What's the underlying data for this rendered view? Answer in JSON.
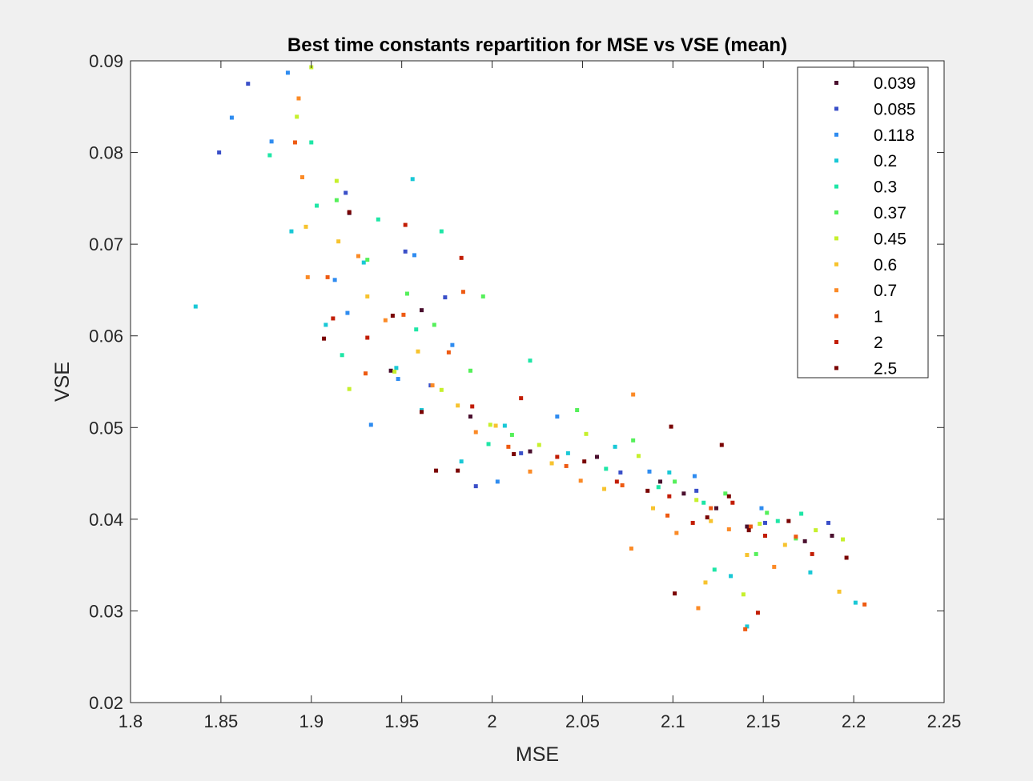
{
  "chart_data": {
    "type": "scatter",
    "title": "Best time constants repartition for MSE vs VSE (mean)",
    "xlabel": "MSE",
    "ylabel": "VSE",
    "xlim": [
      1.8,
      2.25
    ],
    "ylim": [
      0.02,
      0.09
    ],
    "xticks": [
      1.8,
      1.85,
      1.9,
      1.95,
      2.0,
      2.05,
      2.1,
      2.15,
      2.2,
      2.25
    ],
    "xtick_labels": [
      "1.8",
      "1.85",
      "1.9",
      "1.95",
      "2",
      "2.05",
      "2.1",
      "2.15",
      "2.2",
      "2.25"
    ],
    "yticks": [
      0.02,
      0.03,
      0.04,
      0.05,
      0.06,
      0.07,
      0.08,
      0.09
    ],
    "ytick_labels": [
      "0.02",
      "0.03",
      "0.04",
      "0.05",
      "0.06",
      "0.07",
      "0.08",
      "0.09"
    ],
    "grid": false,
    "legend_position": "top-right",
    "series": [
      {
        "name": "0.039",
        "color": "#4a0f2e",
        "points": [
          [
            1.921,
            0.0734
          ],
          [
            1.944,
            0.0562
          ],
          [
            1.961,
            0.0628
          ],
          [
            1.988,
            0.0512
          ],
          [
            2.021,
            0.0474
          ],
          [
            2.058,
            0.0468
          ],
          [
            2.093,
            0.0441
          ],
          [
            2.124,
            0.0412
          ],
          [
            2.141,
            0.0392
          ],
          [
            2.173,
            0.0376
          ],
          [
            2.188,
            0.0382
          ],
          [
            2.106,
            0.0428
          ]
        ]
      },
      {
        "name": "0.085",
        "color": "#3a4fc8",
        "points": [
          [
            1.849,
            0.08
          ],
          [
            1.865,
            0.0875
          ],
          [
            1.919,
            0.0756
          ],
          [
            1.952,
            0.0692
          ],
          [
            1.974,
            0.0642
          ],
          [
            1.991,
            0.0436
          ],
          [
            2.016,
            0.0472
          ],
          [
            2.071,
            0.0451
          ],
          [
            2.113,
            0.0431
          ],
          [
            2.151,
            0.0396
          ],
          [
            2.186,
            0.0396
          ],
          [
            1.966,
            0.0546
          ]
        ]
      },
      {
        "name": "0.118",
        "color": "#2f8cf0",
        "points": [
          [
            1.856,
            0.0838
          ],
          [
            1.878,
            0.0812
          ],
          [
            1.887,
            0.0887
          ],
          [
            1.913,
            0.0661
          ],
          [
            1.92,
            0.0625
          ],
          [
            1.933,
            0.0503
          ],
          [
            1.957,
            0.0688
          ],
          [
            1.978,
            0.059
          ],
          [
            2.003,
            0.0441
          ],
          [
            2.036,
            0.0512
          ],
          [
            2.087,
            0.0452
          ],
          [
            2.112,
            0.0447
          ],
          [
            2.149,
            0.0412
          ],
          [
            1.948,
            0.0553
          ]
        ]
      },
      {
        "name": "0.2",
        "color": "#19c8d6",
        "points": [
          [
            1.836,
            0.0632
          ],
          [
            1.889,
            0.0714
          ],
          [
            1.908,
            0.0612
          ],
          [
            1.929,
            0.068
          ],
          [
            1.947,
            0.0565
          ],
          [
            1.961,
            0.0519
          ],
          [
            1.983,
            0.0463
          ],
          [
            2.007,
            0.0502
          ],
          [
            2.042,
            0.0472
          ],
          [
            2.068,
            0.0479
          ],
          [
            2.098,
            0.0451
          ],
          [
            2.132,
            0.0338
          ],
          [
            2.141,
            0.0283
          ],
          [
            2.176,
            0.0342
          ],
          [
            2.201,
            0.0309
          ],
          [
            1.956,
            0.0771
          ]
        ]
      },
      {
        "name": "0.3",
        "color": "#1ee6a6",
        "points": [
          [
            1.877,
            0.0797
          ],
          [
            1.9,
            0.0811
          ],
          [
            1.903,
            0.0742
          ],
          [
            1.917,
            0.0579
          ],
          [
            1.937,
            0.0727
          ],
          [
            1.958,
            0.0607
          ],
          [
            1.972,
            0.0714
          ],
          [
            1.998,
            0.0482
          ],
          [
            2.021,
            0.0573
          ],
          [
            2.063,
            0.0455
          ],
          [
            2.092,
            0.0435
          ],
          [
            2.117,
            0.0418
          ],
          [
            2.158,
            0.0398
          ],
          [
            2.171,
            0.0406
          ],
          [
            2.123,
            0.0345
          ]
        ]
      },
      {
        "name": "0.37",
        "color": "#55f05a",
        "points": [
          [
            1.914,
            0.0748
          ],
          [
            1.931,
            0.0683
          ],
          [
            1.953,
            0.0646
          ],
          [
            1.968,
            0.0612
          ],
          [
            1.988,
            0.0562
          ],
          [
            1.995,
            0.0643
          ],
          [
            2.011,
            0.0492
          ],
          [
            2.047,
            0.0519
          ],
          [
            2.078,
            0.0486
          ],
          [
            2.101,
            0.0441
          ],
          [
            2.129,
            0.0428
          ],
          [
            2.152,
            0.0407
          ],
          [
            2.168,
            0.0379
          ],
          [
            2.146,
            0.0362
          ]
        ]
      },
      {
        "name": "0.45",
        "color": "#c6f02c",
        "points": [
          [
            1.892,
            0.0839
          ],
          [
            1.9,
            0.0893
          ],
          [
            1.914,
            0.0769
          ],
          [
            1.921,
            0.0542
          ],
          [
            1.946,
            0.0561
          ],
          [
            1.972,
            0.0541
          ],
          [
            1.999,
            0.0503
          ],
          [
            2.026,
            0.0481
          ],
          [
            2.052,
            0.0493
          ],
          [
            2.081,
            0.0469
          ],
          [
            2.113,
            0.0421
          ],
          [
            2.148,
            0.0395
          ],
          [
            2.179,
            0.0388
          ],
          [
            2.194,
            0.0378
          ],
          [
            2.139,
            0.0318
          ]
        ]
      },
      {
        "name": "0.6",
        "color": "#f7c32e",
        "points": [
          [
            1.897,
            0.0719
          ],
          [
            1.915,
            0.0703
          ],
          [
            1.931,
            0.0643
          ],
          [
            1.959,
            0.0583
          ],
          [
            1.981,
            0.0524
          ],
          [
            2.002,
            0.0502
          ],
          [
            2.033,
            0.0461
          ],
          [
            2.062,
            0.0433
          ],
          [
            2.089,
            0.0412
          ],
          [
            2.121,
            0.0398
          ],
          [
            2.141,
            0.0361
          ],
          [
            2.162,
            0.0372
          ],
          [
            2.192,
            0.0321
          ],
          [
            2.118,
            0.0331
          ]
        ]
      },
      {
        "name": "0.7",
        "color": "#fb8a26",
        "points": [
          [
            1.893,
            0.0859
          ],
          [
            1.895,
            0.0773
          ],
          [
            1.898,
            0.0664
          ],
          [
            1.926,
            0.0687
          ],
          [
            1.941,
            0.0617
          ],
          [
            1.967,
            0.0546
          ],
          [
            1.991,
            0.0495
          ],
          [
            2.021,
            0.0452
          ],
          [
            2.049,
            0.0442
          ],
          [
            2.077,
            0.0368
          ],
          [
            2.102,
            0.0385
          ],
          [
            2.131,
            0.0389
          ],
          [
            2.156,
            0.0348
          ],
          [
            2.114,
            0.0303
          ],
          [
            2.078,
            0.0536
          ]
        ]
      },
      {
        "name": "1",
        "color": "#ee5a12",
        "points": [
          [
            1.891,
            0.0811
          ],
          [
            1.909,
            0.0664
          ],
          [
            1.93,
            0.0559
          ],
          [
            1.951,
            0.0623
          ],
          [
            1.976,
            0.0582
          ],
          [
            1.984,
            0.0648
          ],
          [
            2.009,
            0.0479
          ],
          [
            2.041,
            0.0458
          ],
          [
            2.072,
            0.0437
          ],
          [
            2.097,
            0.0404
          ],
          [
            2.121,
            0.0412
          ],
          [
            2.143,
            0.0392
          ],
          [
            2.168,
            0.0381
          ],
          [
            2.206,
            0.0307
          ],
          [
            2.14,
            0.028
          ]
        ]
      },
      {
        "name": "2",
        "color": "#c21d04",
        "points": [
          [
            1.912,
            0.0619
          ],
          [
            1.931,
            0.0598
          ],
          [
            1.952,
            0.0721
          ],
          [
            1.983,
            0.0685
          ],
          [
            1.989,
            0.0523
          ],
          [
            2.016,
            0.0532
          ],
          [
            2.036,
            0.0468
          ],
          [
            2.069,
            0.0441
          ],
          [
            2.098,
            0.0425
          ],
          [
            2.111,
            0.0396
          ],
          [
            2.133,
            0.0418
          ],
          [
            2.151,
            0.0382
          ],
          [
            2.177,
            0.0362
          ],
          [
            2.147,
            0.0298
          ]
        ]
      },
      {
        "name": "2.5",
        "color": "#7a0403",
        "points": [
          [
            1.907,
            0.0597
          ],
          [
            1.921,
            0.0735
          ],
          [
            1.945,
            0.0622
          ],
          [
            1.961,
            0.0517
          ],
          [
            1.969,
            0.0453
          ],
          [
            1.981,
            0.0453
          ],
          [
            2.012,
            0.0471
          ],
          [
            2.051,
            0.0463
          ],
          [
            2.086,
            0.0431
          ],
          [
            2.099,
            0.0501
          ],
          [
            2.101,
            0.0319
          ],
          [
            2.119,
            0.0402
          ],
          [
            2.131,
            0.0425
          ],
          [
            2.142,
            0.0388
          ],
          [
            2.164,
            0.0398
          ],
          [
            2.196,
            0.0358
          ],
          [
            2.127,
            0.0481
          ]
        ]
      }
    ]
  }
}
